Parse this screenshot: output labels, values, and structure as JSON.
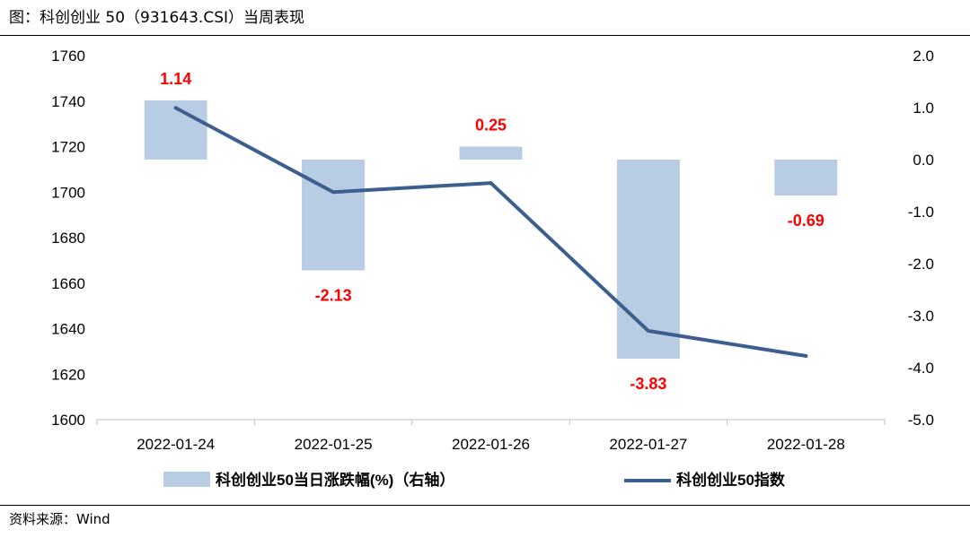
{
  "header": {
    "title": "图：科创创业 50（931643.CSI）当周表现"
  },
  "footer": {
    "source": "资料来源：Wind"
  },
  "colors": {
    "bar": "#b8cce4",
    "line": "#3c5f8f",
    "data_label": "#ff0000",
    "axis": "#bfbfbf"
  },
  "chart_data": {
    "type": "bar+line",
    "title": "",
    "categories": [
      "2022-01-24",
      "2022-01-25",
      "2022-01-26",
      "2022-01-27",
      "2022-01-28"
    ],
    "series": [
      {
        "name": "科创创业50当日涨跌幅(%)（右轴）",
        "type": "bar",
        "axis": "right",
        "values": [
          1.14,
          -2.13,
          0.25,
          -3.83,
          -0.69
        ],
        "data_labels": [
          "1.14",
          "-2.13",
          "0.25",
          "-3.83",
          "-0.69"
        ]
      },
      {
        "name": "科创创业50指数",
        "type": "line",
        "axis": "left",
        "values": [
          1737,
          1700,
          1704,
          1639,
          1628
        ]
      }
    ],
    "y_left": {
      "lim": [
        1600,
        1760
      ],
      "ticks": [
        "1600",
        "1620",
        "1640",
        "1660",
        "1680",
        "1700",
        "1720",
        "1740",
        "1760"
      ]
    },
    "y_right": {
      "lim": [
        -5.0,
        2.0
      ],
      "ticks": [
        "-5.0",
        "-4.0",
        "-3.0",
        "-2.0",
        "-1.0",
        "0.0",
        "1.0",
        "2.0"
      ]
    },
    "grid": false,
    "legend": "bottom"
  }
}
